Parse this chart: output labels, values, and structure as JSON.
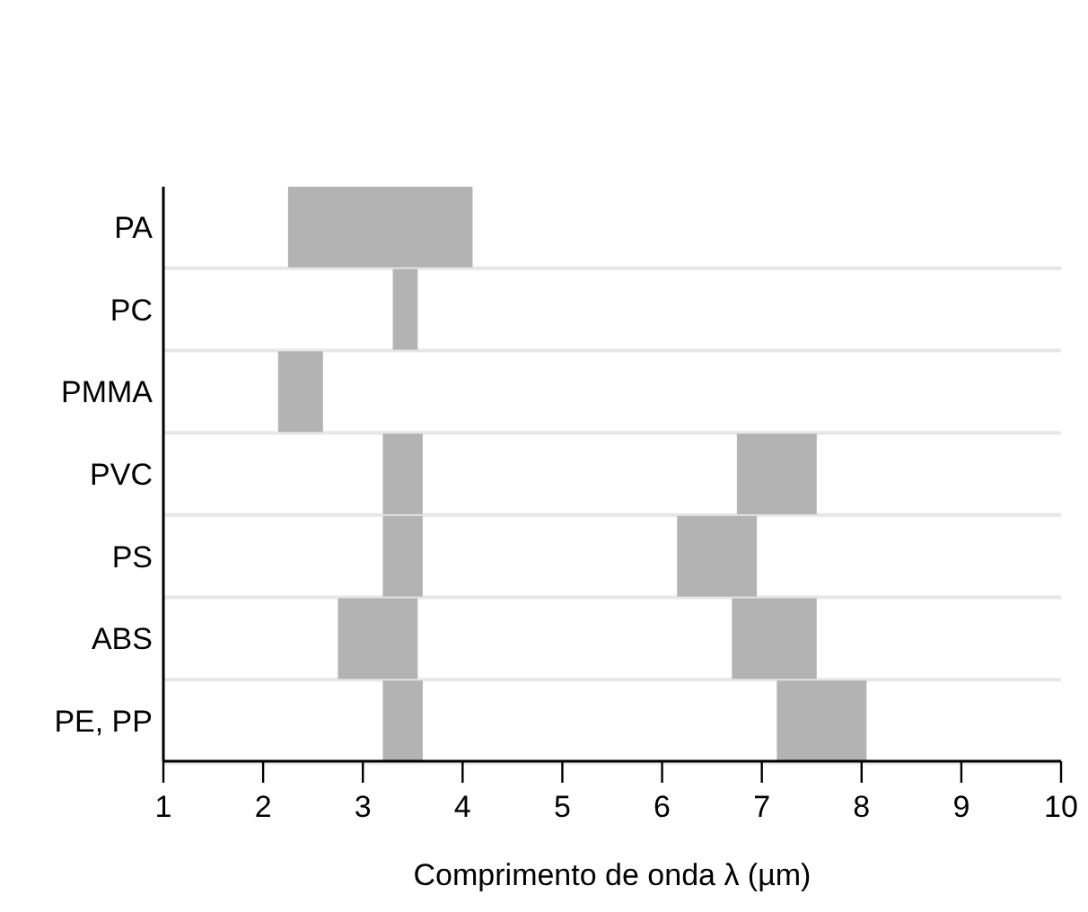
{
  "chart_data": {
    "type": "bar",
    "orientation": "horizontal",
    "xlabel": "Comprimento de onda λ (µm)",
    "categories": [
      "PA",
      "PC",
      "PMMA",
      "PVC",
      "PS",
      "ABS",
      "PE, PP"
    ],
    "series": [
      {
        "color": "#b3b3b3",
        "base": [
          2.25,
          3.3,
          2.15,
          3.2,
          3.2,
          2.75,
          3.2
        ],
        "values": [
          1.85,
          0.25,
          0.45,
          0.4,
          0.4,
          0.8,
          0.4
        ]
      },
      {
        "color": "#b3b3b3",
        "base": [
          null,
          null,
          null,
          6.75,
          6.15,
          6.7,
          7.15
        ],
        "values": [
          null,
          null,
          null,
          0.8,
          0.8,
          0.85,
          0.9
        ]
      }
    ],
    "xlim": [
      1,
      10
    ],
    "xticks": [
      1,
      2,
      3,
      4,
      5,
      6,
      7,
      8,
      9,
      10
    ],
    "grid": "y"
  }
}
